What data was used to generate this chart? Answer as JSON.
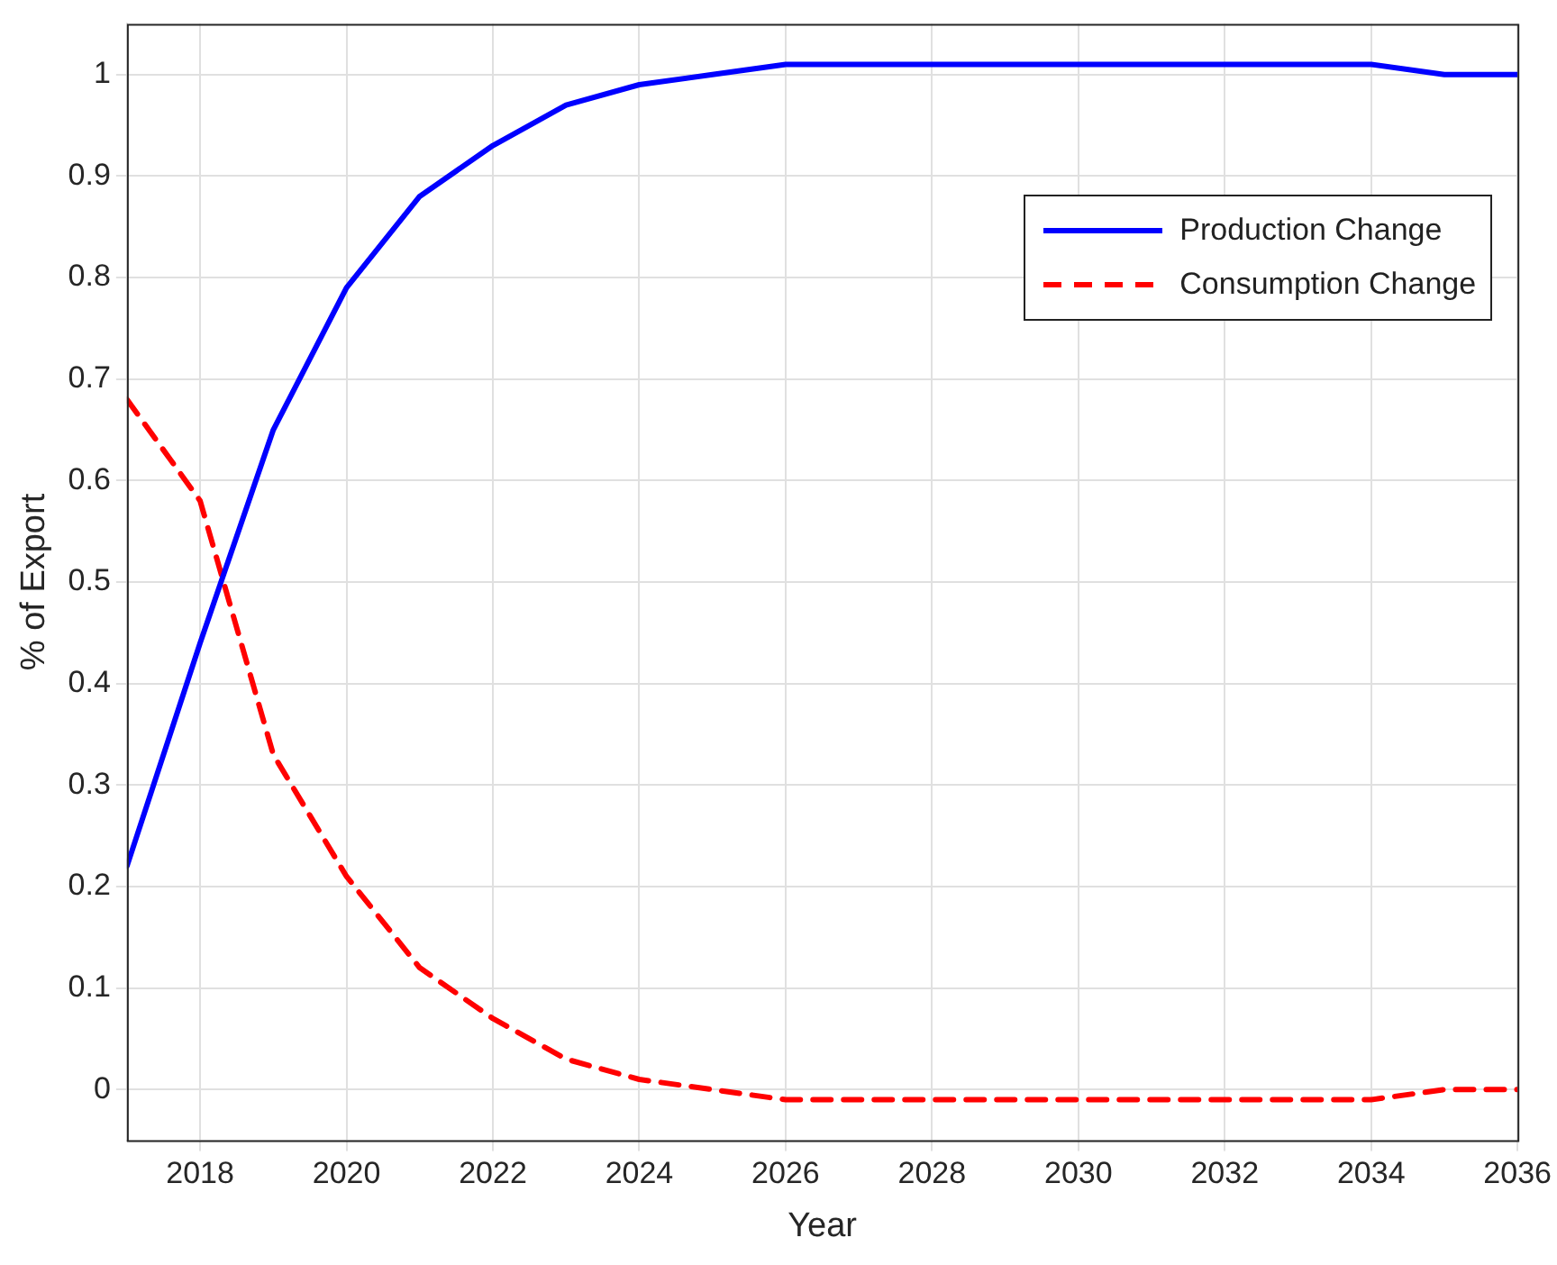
{
  "chart_data": {
    "type": "line",
    "xlabel": "Year",
    "ylabel": "% of Export",
    "x": [
      2017,
      2018,
      2019,
      2020,
      2021,
      2022,
      2023,
      2024,
      2025,
      2026,
      2027,
      2028,
      2029,
      2030,
      2031,
      2032,
      2033,
      2034,
      2035,
      2036
    ],
    "series": [
      {
        "name": "Production Change",
        "color": "#0000ff",
        "line_style": "solid",
        "values": [
          0.22,
          0.44,
          0.65,
          0.79,
          0.88,
          0.93,
          0.97,
          0.99,
          1.0,
          1.01,
          1.01,
          1.01,
          1.01,
          1.01,
          1.01,
          1.01,
          1.01,
          1.01,
          1.0,
          1.0
        ]
      },
      {
        "name": "Consumption Change",
        "color": "#ff0000",
        "line_style": "dashed",
        "values": [
          0.68,
          0.58,
          0.33,
          0.21,
          0.12,
          0.07,
          0.03,
          0.01,
          0,
          -0.01,
          -0.01,
          -0.01,
          -0.01,
          -0.01,
          -0.01,
          -0.01,
          -0.01,
          -0.01,
          0,
          0
        ]
      }
    ],
    "xlim": [
      2017,
      2036
    ],
    "xticks": [
      2018,
      2020,
      2022,
      2024,
      2026,
      2028,
      2030,
      2032,
      2034,
      2036
    ],
    "ylim": [
      -0.05,
      1.05
    ],
    "yticks": [
      0,
      0.1,
      0.2,
      0.3,
      0.4,
      0.5,
      0.6,
      0.7,
      0.8,
      0.9,
      1
    ],
    "grid": true,
    "legend": "top right"
  }
}
